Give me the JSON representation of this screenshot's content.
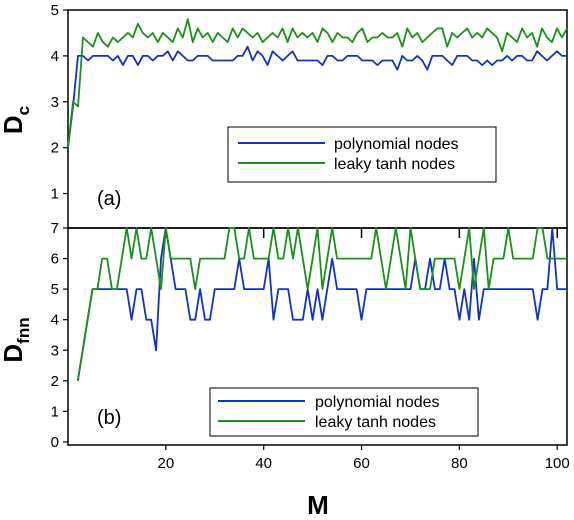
{
  "chart_data": [
    {
      "type": "line",
      "panel_label": "(a)",
      "ylabel": "D",
      "ylabel_sub": "c",
      "xlim": [
        2,
        102
      ],
      "ylim": [
        0.25,
        5
      ],
      "yticks": [
        1,
        2,
        3,
        4,
        5
      ],
      "grid": false,
      "legend": "lower-right",
      "x_start": 2,
      "series": [
        {
          "name": "polynomial nodes",
          "color": "#1032c8",
          "values": [
            2.0,
            2.9,
            4.0,
            4.0,
            3.9,
            4.0,
            4.0,
            4.0,
            4.0,
            3.9,
            4.0,
            3.8,
            4.0,
            4.0,
            3.8,
            4.0,
            4.0,
            3.9,
            4.0,
            4.0,
            4.1,
            3.9,
            4.1,
            4.0,
            3.9,
            3.9,
            4.0,
            4.0,
            4.0,
            3.9,
            3.9,
            3.9,
            3.9,
            3.9,
            4.0,
            4.0,
            4.2,
            3.9,
            4.1,
            4.0,
            3.8,
            4.1,
            4.0,
            3.9,
            4.0,
            4.1,
            3.9,
            3.9,
            3.9,
            3.9,
            3.9,
            3.8,
            4.0,
            4.0,
            3.9,
            3.9,
            4.0,
            4.0,
            4.0,
            3.9,
            3.9,
            3.9,
            3.8,
            3.9,
            3.9,
            3.9,
            3.7,
            4.0,
            3.9,
            3.9,
            4.0,
            3.9,
            3.7,
            4.0,
            4.0,
            4.0,
            3.9,
            3.8,
            4.0,
            4.0,
            4.0,
            3.9,
            3.9,
            3.8,
            3.9,
            3.8,
            3.9,
            3.9,
            4.0,
            3.9,
            4.0,
            4.0,
            3.9,
            3.9,
            4.1,
            4.0,
            3.9,
            4.0,
            4.1,
            4.0,
            4.0
          ]
        },
        {
          "name": "leaky tanh nodes",
          "color": "#199119",
          "values": [
            2.0,
            3.0,
            2.9,
            4.4,
            4.3,
            4.2,
            4.5,
            4.3,
            4.2,
            4.4,
            4.3,
            4.4,
            4.5,
            4.4,
            4.7,
            4.5,
            4.4,
            4.5,
            4.3,
            4.5,
            4.4,
            4.3,
            4.6,
            4.4,
            4.8,
            4.3,
            4.6,
            4.4,
            4.5,
            4.3,
            4.5,
            4.4,
            4.3,
            4.6,
            4.4,
            4.6,
            4.5,
            4.4,
            4.5,
            4.3,
            4.4,
            4.5,
            4.4,
            4.6,
            4.3,
            4.6,
            4.4,
            4.5,
            4.4,
            4.5,
            4.3,
            4.6,
            4.5,
            4.3,
            4.5,
            4.4,
            4.4,
            4.3,
            4.5,
            4.6,
            4.3,
            4.4,
            4.4,
            4.5,
            4.4,
            4.4,
            4.5,
            4.2,
            4.6,
            4.4,
            4.5,
            4.3,
            4.4,
            4.5,
            4.6,
            4.6,
            4.2,
            4.5,
            4.4,
            4.5,
            4.6,
            4.4,
            4.5,
            4.4,
            4.6,
            4.5,
            4.4,
            4.1,
            4.5,
            4.4,
            4.3,
            4.6,
            4.4,
            4.5,
            4.2,
            4.6,
            4.4,
            4.3,
            4.6,
            4.4,
            4.6
          ]
        }
      ]
    },
    {
      "type": "line",
      "panel_label": "(b)",
      "xlabel": "M",
      "ylabel": "D",
      "ylabel_sub": "fnn",
      "xlim": [
        0,
        102
      ],
      "ylim": [
        -0.1,
        7
      ],
      "xticks": [
        20,
        40,
        60,
        80,
        100
      ],
      "yticks": [
        0,
        1,
        2,
        3,
        4,
        5,
        6,
        7
      ],
      "grid": false,
      "legend": "lower-right",
      "x_start": 2,
      "series": [
        {
          "name": "polynomial nodes",
          "color": "#1032c8",
          "values": [
            2,
            3,
            4,
            5,
            5,
            5,
            5,
            5,
            5,
            5,
            5,
            4,
            5,
            5,
            4,
            4,
            3,
            6,
            7,
            6,
            5,
            5,
            5,
            4,
            4,
            5,
            4,
            4,
            5,
            5,
            5,
            5,
            5,
            6,
            5,
            5,
            5,
            5,
            5,
            6,
            4,
            5,
            5,
            5,
            4,
            4,
            4,
            5,
            4,
            5,
            4,
            5,
            6,
            5,
            5,
            5,
            5,
            5,
            4,
            5,
            5,
            5,
            5,
            5,
            5,
            5,
            5,
            5,
            5,
            6,
            5,
            5,
            6,
            5,
            5,
            6,
            5,
            5,
            4,
            5,
            4,
            6,
            4,
            5,
            5,
            5,
            5,
            5,
            5,
            5,
            5,
            5,
            5,
            5,
            4,
            5,
            5,
            7,
            5,
            5,
            5
          ]
        },
        {
          "name": "leaky tanh nodes",
          "color": "#199119",
          "values": [
            2,
            3,
            4,
            5,
            5,
            6,
            6,
            5,
            5,
            6,
            7,
            6,
            7,
            6,
            6,
            7,
            6,
            5,
            7,
            6,
            6,
            6,
            6,
            6,
            5,
            6,
            6,
            6,
            6,
            6,
            6,
            7,
            7,
            6,
            6,
            7,
            6,
            6,
            6,
            6,
            7,
            6,
            6,
            7,
            6,
            7,
            6,
            5,
            6,
            7,
            5,
            6,
            7,
            6,
            6,
            6,
            6,
            6,
            6,
            6,
            6,
            7,
            6,
            5,
            6,
            7,
            6,
            5,
            7,
            6,
            5,
            5,
            5,
            6,
            6,
            6,
            6,
            6,
            5,
            6,
            7,
            5,
            6,
            7,
            5,
            6,
            6,
            6,
            7,
            6,
            6,
            6,
            6,
            6,
            7,
            7,
            6,
            6,
            6,
            6,
            6
          ]
        }
      ]
    }
  ]
}
